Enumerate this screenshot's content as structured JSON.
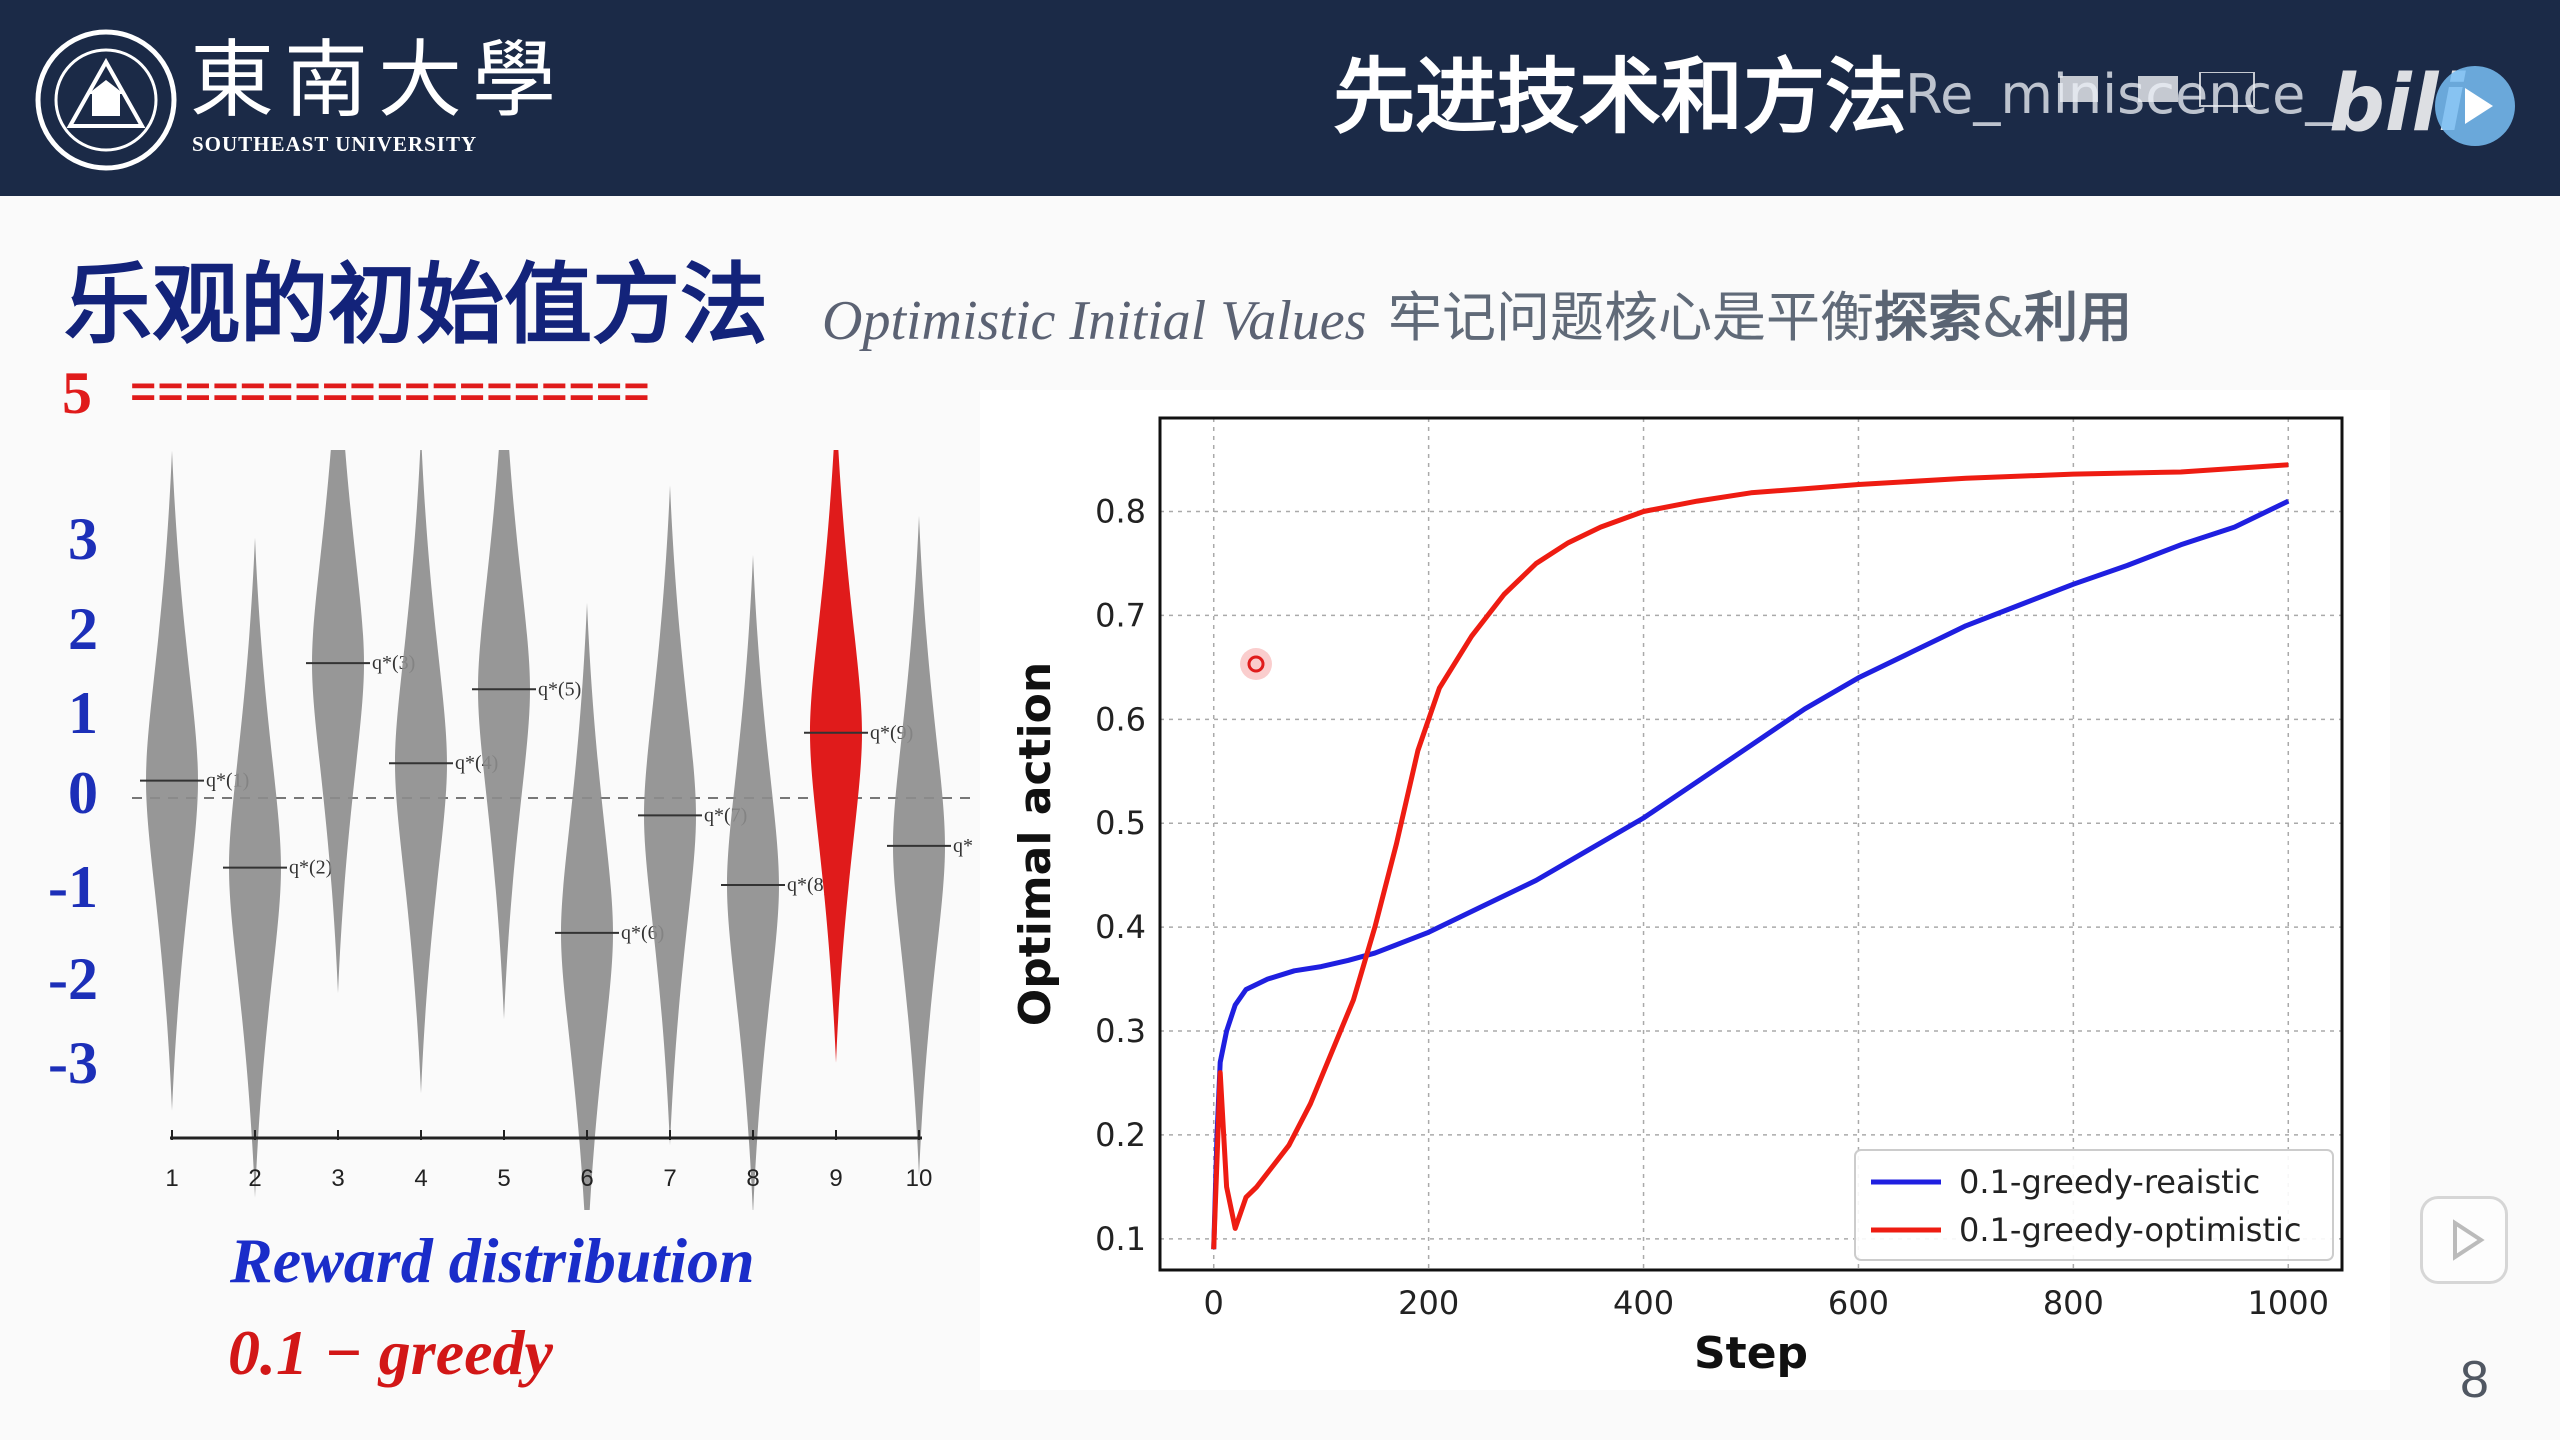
{
  "header": {
    "logo_cn": "東南大學",
    "logo_en": "SOUTHEAST UNIVERSITY",
    "title": "先进技术和方法",
    "watermark_user": "Re_miniscence_",
    "watermark_logo": "bilibili"
  },
  "slide": {
    "title_cn": "乐观的初始值方法",
    "title_en": "Optimistic Initial Values",
    "note_plain": "牢记问题核心是平衡",
    "note_bold_1": "探索",
    "note_amp": "&",
    "note_bold_2": "利用",
    "page_number": "8"
  },
  "left_panel": {
    "optimistic_value": "5",
    "optimistic_line": "===================",
    "y_ticks": [
      "3",
      "2",
      "1",
      "0",
      "-1",
      "-2",
      "-3"
    ],
    "reward_label": "Reward distribution",
    "greedy_label": "0.1 − greedy",
    "violins": [
      {
        "x": "1",
        "label": "q*(1)",
        "mean": 0.2,
        "highlight": false
      },
      {
        "x": "2",
        "label": "q*(2)",
        "mean": -0.8,
        "highlight": false
      },
      {
        "x": "3",
        "label": "q*(3)",
        "mean": 1.55,
        "highlight": false
      },
      {
        "x": "4",
        "label": "q*(4)",
        "mean": 0.4,
        "highlight": false
      },
      {
        "x": "5",
        "label": "q*(5)",
        "mean": 1.25,
        "highlight": false
      },
      {
        "x": "6",
        "label": "q*(6)",
        "mean": -1.55,
        "highlight": false
      },
      {
        "x": "7",
        "label": "q*(7)",
        "mean": -0.2,
        "highlight": false
      },
      {
        "x": "8",
        "label": "q*(8)",
        "mean": -1.0,
        "highlight": false
      },
      {
        "x": "9",
        "label": "q*(9)",
        "mean": 0.75,
        "highlight": true
      },
      {
        "x": "10",
        "label": "q*",
        "mean": -0.55,
        "highlight": false
      }
    ]
  },
  "colors": {
    "header_bg": "#1b2a47",
    "title_blue": "#13237a",
    "accent_red": "#e01b1b",
    "axis_blue": "#1c2fb8",
    "violin_gray": "#8c8c8c",
    "series_blue": "#1f1fe0",
    "series_red": "#ee1c12"
  },
  "chart_data": {
    "type": "line",
    "title": "",
    "xlabel": "Step",
    "ylabel": "Optimal action",
    "xlim": [
      -50,
      1050
    ],
    "ylim": [
      0.07,
      0.89
    ],
    "xticks": [
      0,
      200,
      400,
      600,
      800,
      1000
    ],
    "yticks": [
      0.1,
      0.2,
      0.3,
      0.4,
      0.5,
      0.6,
      0.7,
      0.8
    ],
    "grid": true,
    "legend_position": "bottom-right",
    "series": [
      {
        "name": "0.1-greedy-reaistic",
        "color": "#1f1fe0",
        "points": [
          [
            0,
            0.09
          ],
          [
            3,
            0.2
          ],
          [
            6,
            0.27
          ],
          [
            12,
            0.3
          ],
          [
            20,
            0.325
          ],
          [
            30,
            0.34
          ],
          [
            50,
            0.35
          ],
          [
            75,
            0.358
          ],
          [
            100,
            0.362
          ],
          [
            125,
            0.368
          ],
          [
            150,
            0.375
          ],
          [
            175,
            0.385
          ],
          [
            200,
            0.395
          ],
          [
            250,
            0.42
          ],
          [
            300,
            0.445
          ],
          [
            350,
            0.475
          ],
          [
            400,
            0.505
          ],
          [
            450,
            0.54
          ],
          [
            500,
            0.575
          ],
          [
            550,
            0.61
          ],
          [
            600,
            0.64
          ],
          [
            650,
            0.665
          ],
          [
            700,
            0.69
          ],
          [
            750,
            0.71
          ],
          [
            800,
            0.73
          ],
          [
            850,
            0.748
          ],
          [
            900,
            0.768
          ],
          [
            950,
            0.785
          ],
          [
            1000,
            0.81
          ]
        ]
      },
      {
        "name": "0.1-greedy-optimistic",
        "color": "#ee1c12",
        "points": [
          [
            0,
            0.09
          ],
          [
            6,
            0.26
          ],
          [
            12,
            0.15
          ],
          [
            20,
            0.11
          ],
          [
            30,
            0.14
          ],
          [
            40,
            0.15
          ],
          [
            55,
            0.17
          ],
          [
            70,
            0.19
          ],
          [
            90,
            0.23
          ],
          [
            110,
            0.28
          ],
          [
            130,
            0.33
          ],
          [
            150,
            0.4
          ],
          [
            170,
            0.48
          ],
          [
            190,
            0.57
          ],
          [
            210,
            0.63
          ],
          [
            240,
            0.68
          ],
          [
            270,
            0.72
          ],
          [
            300,
            0.75
          ],
          [
            330,
            0.77
          ],
          [
            360,
            0.785
          ],
          [
            400,
            0.8
          ],
          [
            450,
            0.81
          ],
          [
            500,
            0.818
          ],
          [
            550,
            0.822
          ],
          [
            600,
            0.826
          ],
          [
            700,
            0.832
          ],
          [
            800,
            0.836
          ],
          [
            900,
            0.838
          ],
          [
            1000,
            0.845
          ]
        ]
      }
    ]
  }
}
